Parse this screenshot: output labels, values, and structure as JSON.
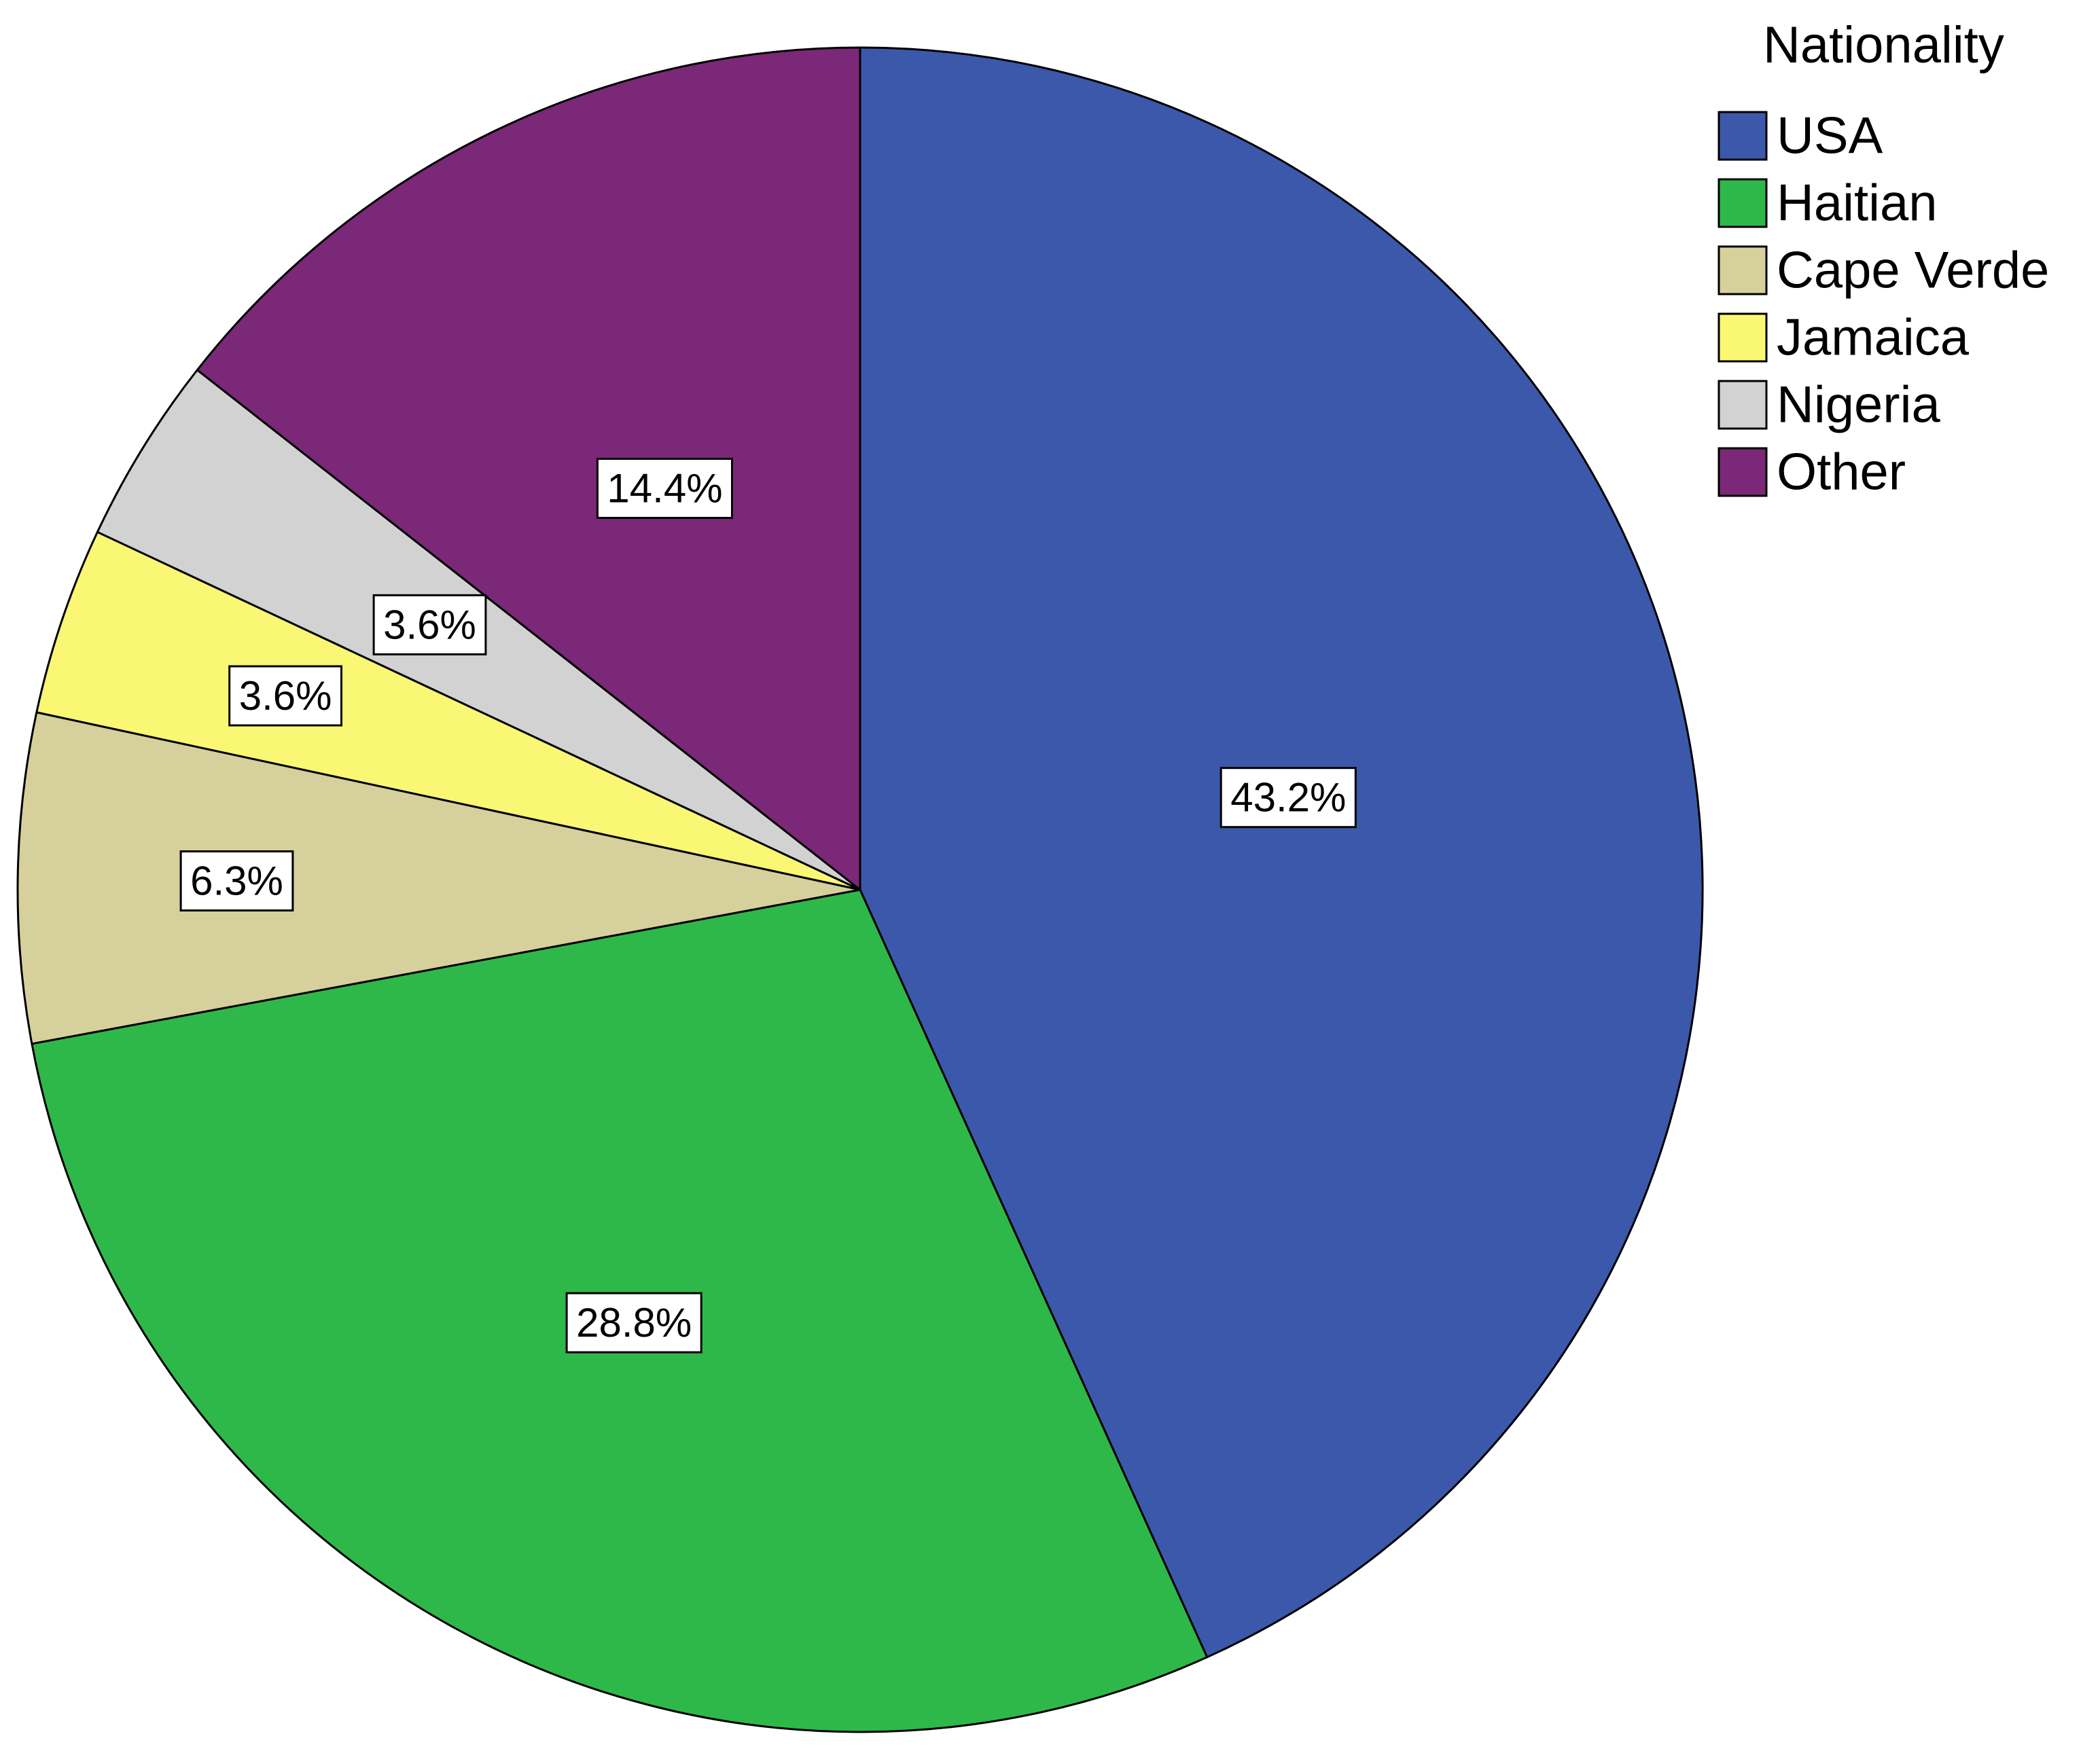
{
  "chart_data": {
    "type": "pie",
    "title": "",
    "legend": {
      "title": "Nationality",
      "placement": "top-right"
    },
    "slices": [
      {
        "name": "USA",
        "value": 43.2,
        "label": "43.2%",
        "color": "#3C58AA"
      },
      {
        "name": "Haitian",
        "value": 28.8,
        "label": "28.8%",
        "color": "#2EB84A"
      },
      {
        "name": "Cape Verde",
        "value": 6.3,
        "label": "6.3%",
        "color": "#D6D09C"
      },
      {
        "name": "Jamaica",
        "value": 3.6,
        "label": "3.6%",
        "color": "#FAF775"
      },
      {
        "name": "Nigeria",
        "value": 3.6,
        "label": "3.6%",
        "color": "#D2D2D2"
      },
      {
        "name": "Other",
        "value": 14.4,
        "label": "14.4%",
        "color": "#7A2877"
      }
    ],
    "start_angle_deg": 0,
    "direction": "clockwise"
  }
}
